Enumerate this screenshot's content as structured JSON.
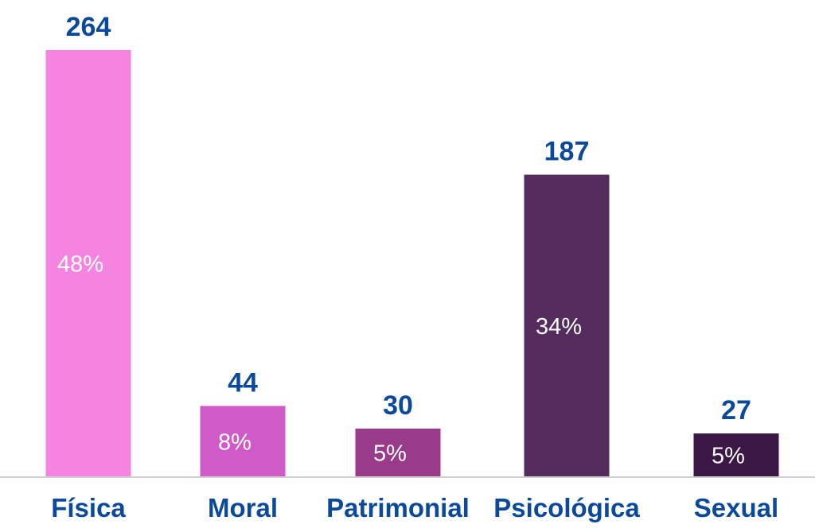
{
  "chart_data": {
    "type": "bar",
    "categories": [
      "Física",
      "Moral",
      "Patrimonial",
      "Psicológica",
      "Sexual"
    ],
    "values": [
      264,
      44,
      30,
      187,
      27
    ],
    "percent_labels": [
      "48%",
      "8%",
      "5%",
      "34%",
      "5%"
    ],
    "colors": [
      "#f584e1",
      "#d15ac9",
      "#993a8a",
      "#542c5e",
      "#3b1746"
    ],
    "ylim": [
      0,
      264
    ],
    "grid": false,
    "legend": "none"
  }
}
